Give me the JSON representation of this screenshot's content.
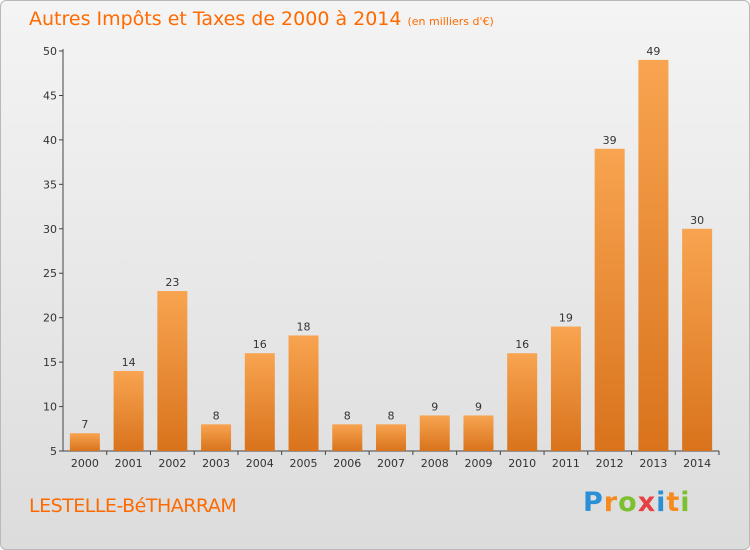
{
  "title": "Autres Impôts et Taxes de 2000 à 2014",
  "subtitle": "(en milliers d'€)",
  "commune": "LESTELLE-BéTHARRAM",
  "logo": {
    "text": "Proxiti",
    "colors": [
      "#2a8fd6",
      "#f58a1f",
      "#7cbf2f",
      "#e84040",
      "#2a8fd6",
      "#f58a1f",
      "#7cbf2f"
    ]
  },
  "colors": {
    "accent": "#ff6a00",
    "bar_top": "#f8a450",
    "bar_bottom": "#d9731c"
  },
  "chart_data": {
    "type": "bar",
    "title": "Autres Impôts et Taxes de 2000 à 2014",
    "subtitle": "(en milliers d'€)",
    "categories": [
      "2000",
      "2001",
      "2002",
      "2003",
      "2004",
      "2005",
      "2006",
      "2007",
      "2008",
      "2009",
      "2010",
      "2011",
      "2012",
      "2013",
      "2014"
    ],
    "values": [
      7,
      14,
      23,
      8,
      16,
      18,
      8,
      8,
      9,
      9,
      16,
      19,
      39,
      49,
      30
    ],
    "ylim": [
      5,
      50
    ],
    "yticks": [
      5,
      10,
      15,
      20,
      25,
      30,
      35,
      40,
      45,
      50
    ],
    "grid": false,
    "legend": "none"
  }
}
